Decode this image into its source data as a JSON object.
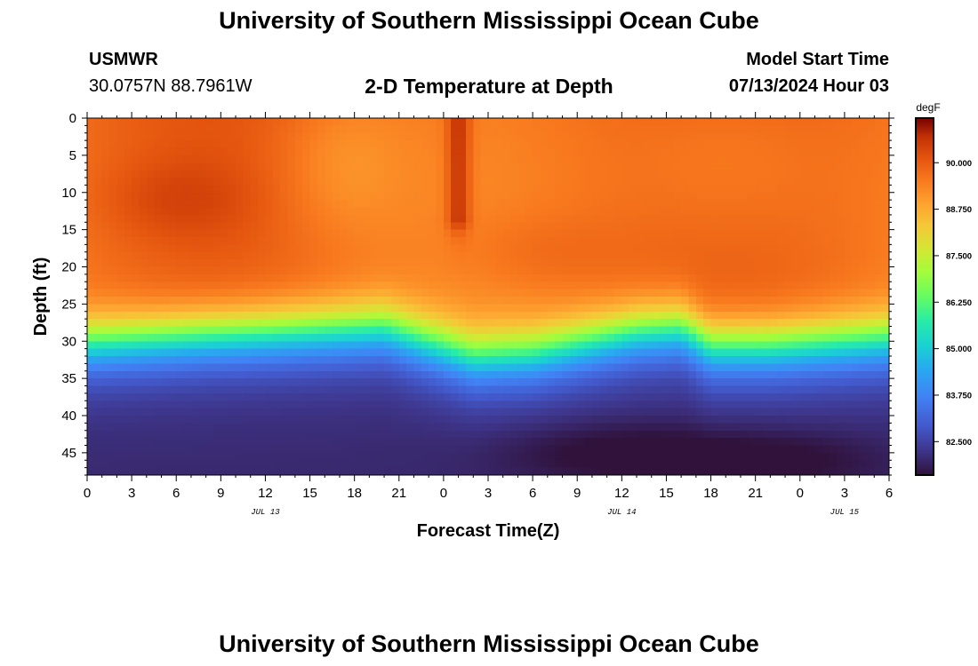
{
  "page": {
    "title": "University of Southern Mississippi Ocean Cube",
    "footer_title": "University of Southern Mississippi Ocean Cube",
    "station_name": "USMWR",
    "station_coords": "30.0757N  88.7961W",
    "subtitle": "2-D Temperature at Depth",
    "model_start_label": "Model Start Time",
    "model_start_value": "07/13/2024 Hour 03"
  },
  "chart_data": {
    "type": "heatmap",
    "title": "2-D Temperature at Depth",
    "xlabel": "Forecast Time(Z)",
    "ylabel": "Depth (ft)",
    "x_ticks": [
      "0",
      "3",
      "6",
      "9",
      "12",
      "15",
      "18",
      "21",
      "0",
      "3",
      "6",
      "9",
      "12",
      "15",
      "18",
      "21",
      "0",
      "3",
      "6"
    ],
    "x_range_hours": [
      0,
      54
    ],
    "date_labels": [
      {
        "label": "JUL 13",
        "hour": 12
      },
      {
        "label": "JUL 14",
        "hour": 36
      },
      {
        "label": "JUL 15",
        "hour": 51
      }
    ],
    "y_ticks": [
      "0",
      "5",
      "10",
      "15",
      "20",
      "25",
      "30",
      "35",
      "40",
      "45"
    ],
    "y_range_ft": [
      0,
      48
    ],
    "colorbar": {
      "unit": "degF",
      "min": 81.6,
      "max": 91.2,
      "ticks": [
        "90.000",
        "88.750",
        "87.500",
        "86.250",
        "85.000",
        "83.750",
        "82.500"
      ],
      "tick_values": [
        90.0,
        88.75,
        87.5,
        86.25,
        85.0,
        83.75,
        82.5
      ]
    },
    "surface_temp_degF": 89.8,
    "bottom_temp_degF": 82.0,
    "thermocline_depth_ft": [
      {
        "hour": 0,
        "depth": 29.5
      },
      {
        "hour": 8,
        "depth": 28.5
      },
      {
        "hour": 20,
        "depth": 27.5
      },
      {
        "hour": 26,
        "depth": 31.5
      },
      {
        "hour": 30,
        "depth": 31.0
      },
      {
        "hour": 37,
        "depth": 28.0
      },
      {
        "hour": 40,
        "depth": 27.5
      },
      {
        "hour": 42,
        "depth": 30.0
      },
      {
        "hour": 46,
        "depth": 30.0
      },
      {
        "hour": 54,
        "depth": 29.0
      }
    ]
  }
}
